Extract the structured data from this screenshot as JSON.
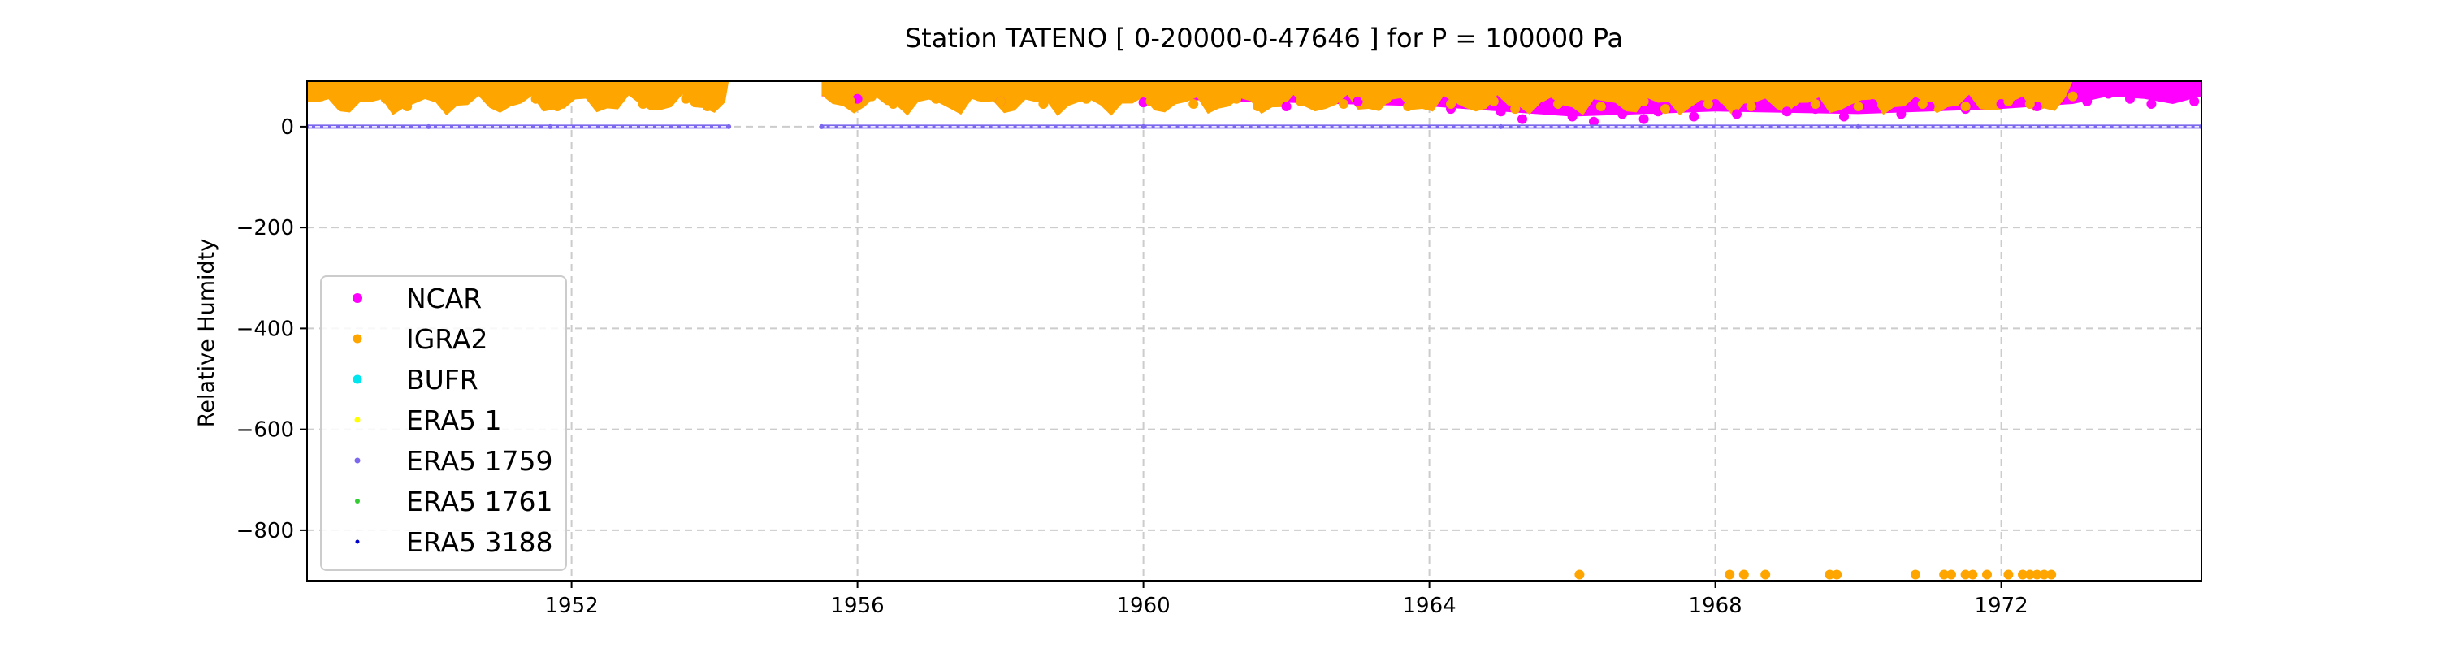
{
  "chart_data": {
    "type": "scatter",
    "title": "Station  TATENO [ 0-20000-0-47646 ]  for P = 100000 Pa",
    "xlabel": "",
    "ylabel": "Relative Humidty",
    "xlim": [
      1948.3,
      1974.8
    ],
    "ylim": [
      -900,
      90
    ],
    "x_ticks": [
      1952,
      1956,
      1960,
      1964,
      1968,
      1972
    ],
    "x_tick_labels": [
      "1952",
      "1956",
      "1960",
      "1964",
      "1968",
      "1972"
    ],
    "y_ticks": [
      0,
      -200,
      -400,
      -600,
      -800
    ],
    "y_tick_labels": [
      "0",
      "−200",
      "−400",
      "−600",
      "−800"
    ],
    "grid": true,
    "legend_position": "lower-left",
    "series": [
      {
        "name": "NCAR",
        "color": "#ff00ff",
        "x": [
          1956.0,
          1958.0,
          1960.0,
          1962.0,
          1963.0,
          1964.3,
          1965.0,
          1965.3,
          1965.6,
          1966.0,
          1966.3,
          1966.7,
          1967.0,
          1967.2,
          1967.7,
          1968.0,
          1968.3,
          1968.7,
          1969.0,
          1969.4,
          1969.8,
          1970.2,
          1970.6,
          1971.0,
          1971.5,
          1972.0,
          1972.5,
          1973.0,
          1973.2,
          1973.5,
          1973.8,
          1974.1,
          1974.4,
          1974.7
        ],
        "y": [
          55,
          50,
          48,
          40,
          50,
          35,
          30,
          15,
          40,
          20,
          10,
          25,
          15,
          30,
          20,
          45,
          25,
          40,
          30,
          35,
          20,
          45,
          25,
          40,
          35,
          45,
          40,
          60,
          50,
          65,
          55,
          45,
          60,
          50
        ]
      },
      {
        "name": "IGRA2",
        "color": "#ffa500",
        "x": [
          1948.5,
          1948.8,
          1949.1,
          1949.4,
          1949.7,
          1950.0,
          1950.3,
          1950.6,
          1950.9,
          1951.2,
          1951.5,
          1951.8,
          1952.1,
          1952.4,
          1952.7,
          1953.0,
          1953.3,
          1953.6,
          1953.9,
          1954.1,
          1955.6,
          1955.9,
          1956.2,
          1956.5,
          1956.8,
          1957.1,
          1957.4,
          1957.7,
          1958.0,
          1958.3,
          1958.6,
          1958.9,
          1959.2,
          1959.5,
          1959.8,
          1960.1,
          1960.4,
          1960.7,
          1961.0,
          1961.3,
          1961.6,
          1961.9,
          1962.2,
          1962.5,
          1962.8,
          1963.1,
          1963.4,
          1963.7,
          1964.0,
          1964.3,
          1964.6,
          1964.9,
          1965.2,
          1965.5,
          1965.8,
          1966.1,
          1966.4,
          1966.7,
          1967.0,
          1967.3,
          1967.6,
          1967.9,
          1968.2,
          1968.5,
          1968.8,
          1969.1,
          1969.4,
          1969.7,
          1970.0,
          1970.3,
          1970.6,
          1970.9,
          1971.2,
          1971.5,
          1971.8,
          1972.1,
          1972.4,
          1972.7,
          1973.0,
          1966.1,
          1968.2,
          1968.4,
          1968.7,
          1969.6,
          1969.7,
          1970.8,
          1971.2,
          1971.3,
          1971.5,
          1971.6,
          1971.8,
          1972.1,
          1972.3,
          1972.4,
          1972.5,
          1972.6,
          1972.7
        ],
        "y": [
          60,
          45,
          70,
          55,
          40,
          65,
          50,
          70,
          45,
          60,
          55,
          40,
          65,
          50,
          70,
          45,
          60,
          55,
          40,
          65,
          70,
          50,
          60,
          45,
          65,
          55,
          40,
          60,
          50,
          70,
          45,
          60,
          55,
          45,
          65,
          50,
          60,
          45,
          65,
          55,
          40,
          60,
          50,
          65,
          45,
          60,
          55,
          40,
          55,
          45,
          60,
          50,
          35,
          55,
          45,
          60,
          40,
          55,
          50,
          35,
          60,
          45,
          55,
          40,
          60,
          50,
          45,
          55,
          40,
          60,
          50,
          45,
          55,
          40,
          60,
          50,
          45,
          55,
          60,
          -888,
          -888,
          -888,
          -888,
          -888,
          -888,
          -888,
          -888,
          -888,
          -888,
          -888,
          -888,
          -888,
          -888,
          -888,
          -888,
          -888,
          -888
        ]
      },
      {
        "name": "BUFR",
        "color": "#00e5ee",
        "x": [],
        "y": []
      },
      {
        "name": "ERA5 1",
        "color": "#ffff00",
        "x": [],
        "y": []
      },
      {
        "name": "ERA5 1759",
        "color": "#7b68ee",
        "x": [
          1948.3,
          1950.0,
          1951.7,
          1954.2,
          1955.5,
          1960.0,
          1965.0,
          1970.0,
          1974.8
        ],
        "y": [
          0,
          0,
          0,
          0,
          0,
          0,
          0,
          0,
          0
        ]
      },
      {
        "name": "ERA5 1761",
        "color": "#32cd32",
        "x": [],
        "y": []
      },
      {
        "name": "ERA5 3188",
        "color": "#0000cd",
        "x": [],
        "y": []
      }
    ]
  }
}
